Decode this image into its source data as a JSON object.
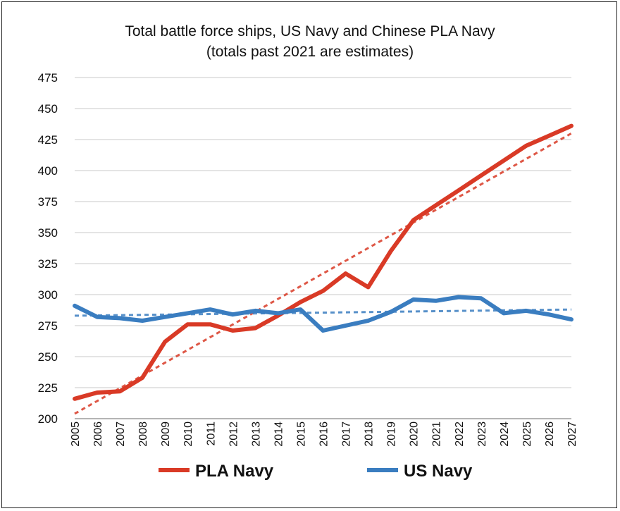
{
  "chart_data": {
    "type": "line",
    "title": "Total battle force ships, US Navy and Chinese PLA Navy",
    "subtitle": "(totals past 2021 are estimates)",
    "x": [
      "2005",
      "2006",
      "2007",
      "2008",
      "2009",
      "2010",
      "2011",
      "2012",
      "2013",
      "2014",
      "2015",
      "2016",
      "2017",
      "2018",
      "2019",
      "2020",
      "2021",
      "2022",
      "2023",
      "2024",
      "2025",
      "2026",
      "2027"
    ],
    "ylim": [
      200,
      475
    ],
    "yticks": [
      200,
      225,
      250,
      275,
      300,
      325,
      350,
      375,
      400,
      425,
      450,
      475
    ],
    "grid": true,
    "legend_position": "bottom",
    "series": [
      {
        "name": "PLA Navy",
        "color": "#d93a26",
        "values": [
          216,
          221,
          222,
          233,
          262,
          276,
          276,
          271,
          273,
          283,
          294,
          303,
          317,
          306,
          335,
          360,
          372,
          384,
          396,
          408,
          420,
          428,
          436
        ],
        "trendline": [
          204,
          430
        ]
      },
      {
        "name": "US Navy",
        "color": "#3a7dc0",
        "values": [
          291,
          282,
          281,
          279,
          282,
          285,
          288,
          284,
          287,
          285,
          288,
          271,
          275,
          279,
          286,
          296,
          295,
          298,
          297,
          285,
          287,
          284,
          280
        ],
        "trendline": [
          283,
          288
        ]
      }
    ]
  }
}
